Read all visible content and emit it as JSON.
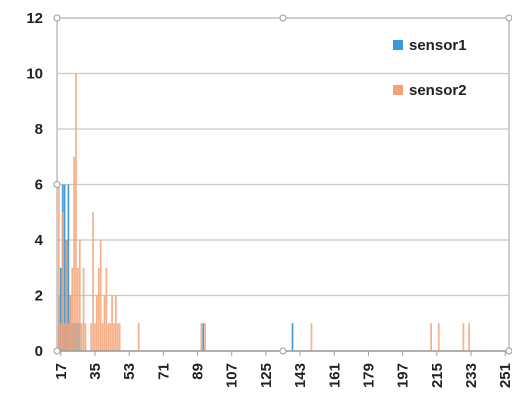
{
  "chart_data": {
    "type": "bar",
    "title": "",
    "xlabel": "",
    "ylabel": "",
    "ylim": [
      0,
      12
    ],
    "xlim": [
      15,
      253
    ],
    "grid": true,
    "legend_position": "top-right",
    "y_ticks": [
      "0",
      "2",
      "4",
      "6",
      "8",
      "10",
      "12"
    ],
    "x_ticks": [
      "17",
      "35",
      "53",
      "71",
      "89",
      "107",
      "125",
      "143",
      "161",
      "179",
      "197",
      "215",
      "233",
      "251"
    ],
    "series": [
      {
        "name": "sensor1",
        "color": "#3a9ad9",
        "x": [
          16,
          17,
          18,
          19,
          20,
          21,
          22,
          23,
          24,
          25,
          26,
          27,
          92,
          139
        ],
        "values": [
          2,
          3,
          6,
          6,
          4,
          6,
          2,
          1,
          1,
          1,
          1,
          1,
          1,
          1
        ]
      },
      {
        "name": "sensor2",
        "color": "#f4a275",
        "x": [
          16,
          17,
          18,
          19,
          20,
          21,
          22,
          23,
          24,
          25,
          26,
          27,
          28,
          29,
          30,
          33,
          34,
          35,
          36,
          37,
          38,
          39,
          40,
          41,
          42,
          43,
          44,
          45,
          46,
          47,
          48,
          58,
          91,
          93,
          149,
          212,
          216,
          229,
          232
        ],
        "values": [
          6,
          1,
          5,
          1,
          4,
          1,
          2,
          3,
          7,
          10,
          3,
          4,
          1,
          3,
          1,
          1,
          5,
          1,
          2,
          3,
          4,
          1,
          2,
          3,
          1,
          1,
          2,
          1,
          2,
          1,
          1,
          1,
          1,
          1,
          1,
          1,
          1,
          1,
          1
        ]
      }
    ]
  }
}
